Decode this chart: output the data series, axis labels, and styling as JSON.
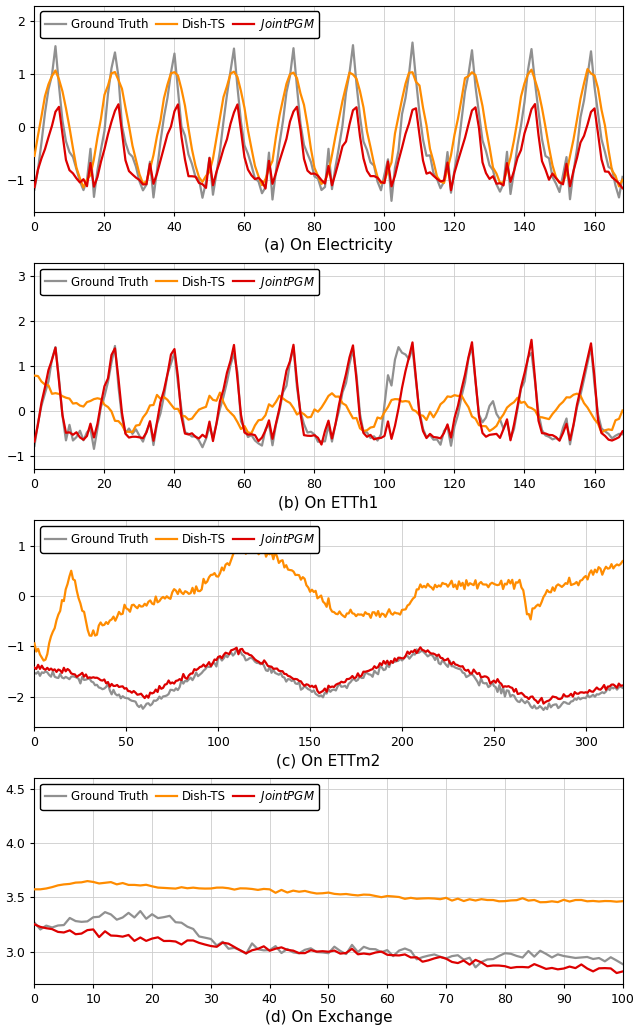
{
  "colors": {
    "dish_ts": "#FF8C00",
    "joint_pgm": "#DD0000",
    "ground_truth": "#909090"
  },
  "line_width": 1.6,
  "legend_loc": "upper left",
  "subplots": [
    {
      "title": "(a) On Electricity",
      "xlim": [
        0,
        168
      ],
      "ylim": [
        -1.6,
        2.3
      ],
      "yticks": [
        -1,
        0,
        1,
        2
      ],
      "xticks": [
        0,
        20,
        40,
        60,
        80,
        100,
        120,
        140,
        160
      ],
      "n_points": 169
    },
    {
      "title": "(b) On ETTh1",
      "xlim": [
        0,
        168
      ],
      "ylim": [
        -1.3,
        3.3
      ],
      "yticks": [
        -1,
        0,
        1,
        2,
        3
      ],
      "xticks": [
        0,
        20,
        40,
        60,
        80,
        100,
        120,
        140,
        160
      ],
      "n_points": 169
    },
    {
      "title": "(c) On ETTm2",
      "xlim": [
        0,
        320
      ],
      "ylim": [
        -2.6,
        1.5
      ],
      "yticks": [
        -2,
        -1,
        0,
        1
      ],
      "xticks": [
        0,
        50,
        100,
        150,
        200,
        250,
        300
      ],
      "n_points": 321
    },
    {
      "title": "(d) On Exchange",
      "xlim": [
        0,
        100
      ],
      "ylim": [
        2.7,
        4.6
      ],
      "yticks": [
        3.0,
        3.5,
        4.0,
        4.5
      ],
      "xticks": [
        0,
        10,
        20,
        30,
        40,
        50,
        60,
        70,
        80,
        90,
        100
      ],
      "n_points": 101
    }
  ]
}
